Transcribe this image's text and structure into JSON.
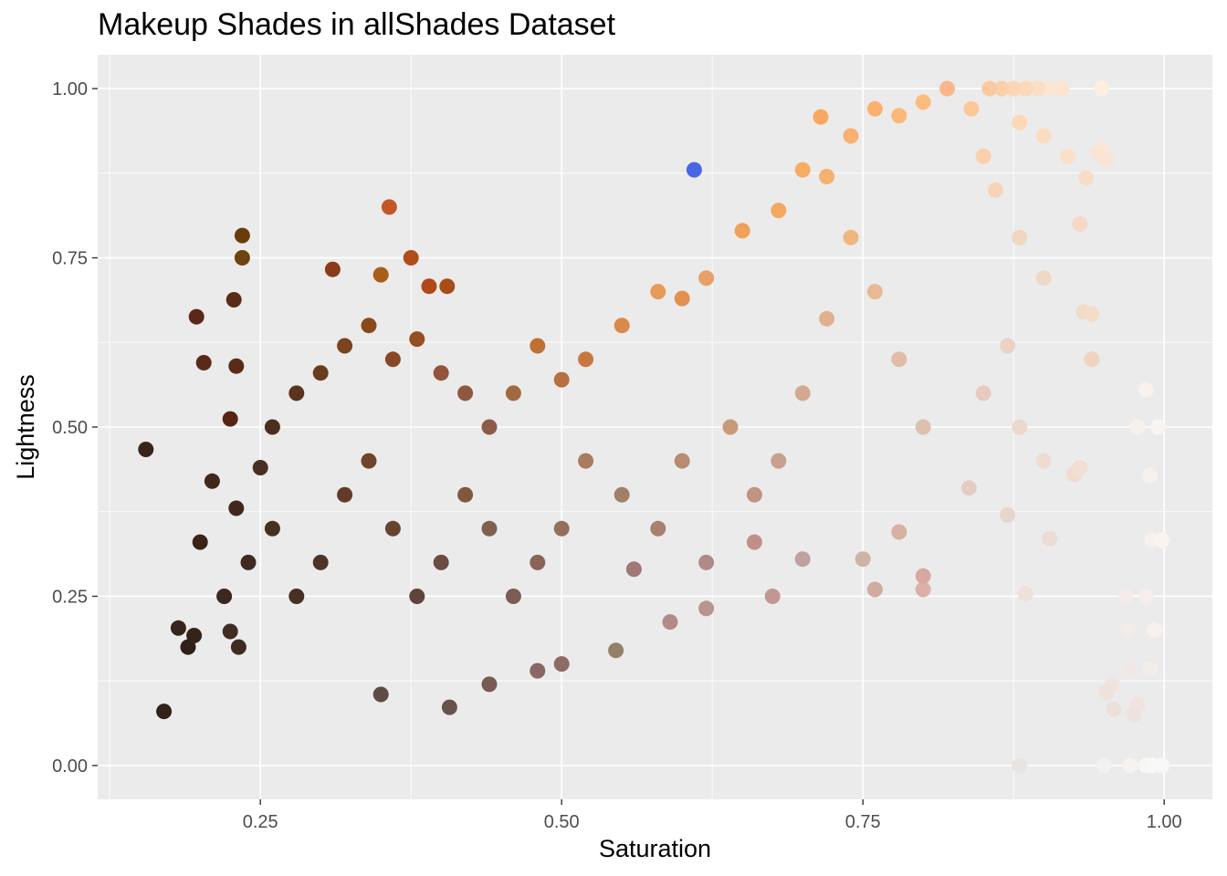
{
  "chart_data": {
    "type": "scatter",
    "title": "Makeup Shades in allShades Dataset",
    "xlabel": "Saturation",
    "ylabel": "Lightness",
    "xlim": [
      0.115,
      1.04
    ],
    "ylim": [
      -0.05,
      1.05
    ],
    "x_ticks": [
      0.25,
      0.5,
      0.75,
      1.0
    ],
    "x_tick_labels": [
      "0.25",
      "0.50",
      "0.75",
      "1.00"
    ],
    "y_ticks": [
      0.0,
      0.25,
      0.5,
      0.75,
      1.0
    ],
    "y_tick_labels": [
      "0.00",
      "0.25",
      "0.50",
      "0.75",
      "1.00"
    ],
    "grid": true,
    "panel_background": "#ebebeb",
    "grid_color": "#ffffff",
    "point_color_rule": "hsl(hue, saturation, lightness) of each shade",
    "points": [
      {
        "x": 0.155,
        "y": 0.467,
        "color": "#3a2418"
      },
      {
        "x": 0.17,
        "y": 0.08,
        "color": "#33221a"
      },
      {
        "x": 0.235,
        "y": 0.783,
        "color": "#6b3c0a"
      },
      {
        "x": 0.235,
        "y": 0.75,
        "color": "#6b4410"
      },
      {
        "x": 0.357,
        "y": 0.825,
        "color": "#c05828"
      },
      {
        "x": 0.61,
        "y": 0.88,
        "color": "#4a66e6"
      },
      {
        "x": 0.715,
        "y": 0.958,
        "color": "#f8a860"
      },
      {
        "x": 0.197,
        "y": 0.663,
        "color": "#5a2818"
      },
      {
        "x": 0.203,
        "y": 0.595,
        "color": "#5a2a18"
      },
      {
        "x": 0.228,
        "y": 0.688,
        "color": "#5a2c18"
      },
      {
        "x": 0.23,
        "y": 0.59,
        "color": "#5a2c18"
      },
      {
        "x": 0.225,
        "y": 0.512,
        "color": "#5a2414"
      },
      {
        "x": 0.35,
        "y": 0.725,
        "color": "#a85d18"
      },
      {
        "x": 0.375,
        "y": 0.75,
        "color": "#b04e18"
      },
      {
        "x": 0.31,
        "y": 0.733,
        "color": "#8a3a14"
      },
      {
        "x": 0.405,
        "y": 0.708,
        "color": "#a84c18"
      },
      {
        "x": 0.39,
        "y": 0.708,
        "color": "#b04818"
      },
      {
        "x": 0.19,
        "y": 0.175,
        "color": "#30201a"
      },
      {
        "x": 0.195,
        "y": 0.192,
        "color": "#332319"
      },
      {
        "x": 0.182,
        "y": 0.203,
        "color": "#36251c"
      },
      {
        "x": 0.232,
        "y": 0.175,
        "color": "#3d2a20"
      },
      {
        "x": 0.225,
        "y": 0.198,
        "color": "#3f2c22"
      },
      {
        "x": 0.35,
        "y": 0.105,
        "color": "#5e4b45"
      },
      {
        "x": 0.407,
        "y": 0.086,
        "color": "#67524d"
      },
      {
        "x": 0.44,
        "y": 0.12,
        "color": "#7a5a55"
      },
      {
        "x": 0.48,
        "y": 0.14,
        "color": "#8a6664"
      },
      {
        "x": 0.5,
        "y": 0.15,
        "color": "#8e6a66"
      },
      {
        "x": 0.545,
        "y": 0.17,
        "color": "#94806a"
      },
      {
        "x": 0.59,
        "y": 0.212,
        "color": "#b48a86"
      },
      {
        "x": 0.62,
        "y": 0.232,
        "color": "#b89590"
      },
      {
        "x": 0.675,
        "y": 0.25,
        "color": "#c09890"
      },
      {
        "x": 0.885,
        "y": 0.254,
        "color": "#eee0da"
      },
      {
        "x": 0.88,
        "y": 0.0,
        "color": "#e8e4e2"
      },
      {
        "x": 0.972,
        "y": 0.0,
        "color": "#f6f2f0"
      },
      {
        "x": 0.95,
        "y": 0.0,
        "color": "#f4f0ee"
      },
      {
        "x": 0.985,
        "y": 0.0,
        "color": "#f8f6f4"
      },
      {
        "x": 0.998,
        "y": 0.0,
        "color": "#faf8f6"
      },
      {
        "x": 0.99,
        "y": 0.0,
        "color": "#faf8f6"
      },
      {
        "x": 0.985,
        "y": 0.555,
        "color": "#f8f2ee"
      },
      {
        "x": 0.978,
        "y": 0.5,
        "color": "#f8f0ec"
      },
      {
        "x": 0.995,
        "y": 0.5,
        "color": "#faf4f0"
      },
      {
        "x": 0.988,
        "y": 0.428,
        "color": "#f8f0ec"
      },
      {
        "x": 0.99,
        "y": 0.333,
        "color": "#f8f0ec"
      },
      {
        "x": 0.998,
        "y": 0.333,
        "color": "#faf4f0"
      },
      {
        "x": 0.968,
        "y": 0.25,
        "color": "#f4ece8"
      },
      {
        "x": 0.985,
        "y": 0.25,
        "color": "#f6eeea"
      },
      {
        "x": 0.97,
        "y": 0.2,
        "color": "#f4ece8"
      },
      {
        "x": 0.992,
        "y": 0.2,
        "color": "#f8f0ec"
      },
      {
        "x": 0.972,
        "y": 0.143,
        "color": "#f0e8e4"
      },
      {
        "x": 0.988,
        "y": 0.143,
        "color": "#f4ece8"
      },
      {
        "x": 0.957,
        "y": 0.12,
        "color": "#f0e4de"
      },
      {
        "x": 0.952,
        "y": 0.108,
        "color": "#ede2dc"
      },
      {
        "x": 0.958,
        "y": 0.083,
        "color": "#ece0da"
      },
      {
        "x": 0.978,
        "y": 0.09,
        "color": "#f0e4e0"
      },
      {
        "x": 0.975,
        "y": 0.075,
        "color": "#eee2de"
      },
      {
        "x": 0.948,
        "y": 1.0,
        "color": "#fdeee2"
      },
      {
        "x": 0.915,
        "y": 1.0,
        "color": "#fce4cf"
      },
      {
        "x": 0.905,
        "y": 1.0,
        "color": "#fce6d2"
      },
      {
        "x": 0.895,
        "y": 1.0,
        "color": "#fbdfc5"
      },
      {
        "x": 0.885,
        "y": 1.0,
        "color": "#fbd9ba"
      },
      {
        "x": 0.875,
        "y": 1.0,
        "color": "#fcd6b4"
      },
      {
        "x": 0.865,
        "y": 1.0,
        "color": "#fbd0aa"
      },
      {
        "x": 0.855,
        "y": 1.0,
        "color": "#fbc9a0"
      },
      {
        "x": 0.82,
        "y": 1.0,
        "color": "#fdb68a"
      },
      {
        "x": 0.948,
        "y": 0.91,
        "color": "#fbe6d8"
      },
      {
        "x": 0.952,
        "y": 0.895,
        "color": "#f9e3d5"
      },
      {
        "x": 0.945,
        "y": 0.905,
        "color": "#fae4d6"
      },
      {
        "x": 0.935,
        "y": 0.868,
        "color": "#f8dcc8"
      },
      {
        "x": 0.93,
        "y": 0.8,
        "color": "#f6d8c6"
      },
      {
        "x": 0.933,
        "y": 0.67,
        "color": "#f0dcc6"
      },
      {
        "x": 0.94,
        "y": 0.667,
        "color": "#f4dcc8"
      },
      {
        "x": 0.94,
        "y": 0.6,
        "color": "#f0d4c0"
      },
      {
        "x": 0.925,
        "y": 0.43,
        "color": "#f0dcd0"
      },
      {
        "x": 0.93,
        "y": 0.44,
        "color": "#f2ded2"
      },
      {
        "x": 0.905,
        "y": 0.335,
        "color": "#ecdcd4"
      },
      {
        "x": 0.87,
        "y": 0.37,
        "color": "#e8d6ce"
      },
      {
        "x": 0.838,
        "y": 0.41,
        "color": "#e4ccc4"
      },
      {
        "x": 0.78,
        "y": 0.345,
        "color": "#d8b0a4"
      },
      {
        "x": 0.75,
        "y": 0.305,
        "color": "#ccb4a6"
      },
      {
        "x": 0.7,
        "y": 0.305,
        "color": "#c0a0a0"
      },
      {
        "x": 0.76,
        "y": 0.26,
        "color": "#d0aca0"
      },
      {
        "x": 0.8,
        "y": 0.26,
        "color": "#dcb0a8"
      },
      {
        "x": 0.8,
        "y": 0.28,
        "color": "#d8a8a0"
      },
      {
        "x": 0.62,
        "y": 0.3,
        "color": "#b08a86"
      },
      {
        "x": 0.66,
        "y": 0.33,
        "color": "#c09088"
      },
      {
        "x": 0.56,
        "y": 0.29,
        "color": "#a07876"
      },
      {
        "x": 0.25,
        "y": 0.44,
        "color": "#4a2e22"
      },
      {
        "x": 0.26,
        "y": 0.5,
        "color": "#4c2e1e"
      },
      {
        "x": 0.28,
        "y": 0.55,
        "color": "#5a341e"
      },
      {
        "x": 0.3,
        "y": 0.58,
        "color": "#683c1c"
      },
      {
        "x": 0.32,
        "y": 0.62,
        "color": "#7a441e"
      },
      {
        "x": 0.34,
        "y": 0.65,
        "color": "#8a4a1c"
      },
      {
        "x": 0.36,
        "y": 0.6,
        "color": "#884826"
      },
      {
        "x": 0.38,
        "y": 0.63,
        "color": "#94501e"
      },
      {
        "x": 0.4,
        "y": 0.58,
        "color": "#92543a"
      },
      {
        "x": 0.42,
        "y": 0.55,
        "color": "#8e5840"
      },
      {
        "x": 0.44,
        "y": 0.5,
        "color": "#8c5c48"
      },
      {
        "x": 0.46,
        "y": 0.55,
        "color": "#a26840"
      },
      {
        "x": 0.48,
        "y": 0.62,
        "color": "#c07030"
      },
      {
        "x": 0.5,
        "y": 0.57,
        "color": "#b87040"
      },
      {
        "x": 0.52,
        "y": 0.6,
        "color": "#c8783e"
      },
      {
        "x": 0.55,
        "y": 0.65,
        "color": "#d88a4c"
      },
      {
        "x": 0.58,
        "y": 0.7,
        "color": "#e89a58"
      },
      {
        "x": 0.6,
        "y": 0.69,
        "color": "#e49050"
      },
      {
        "x": 0.62,
        "y": 0.72,
        "color": "#e8a068"
      },
      {
        "x": 0.65,
        "y": 0.79,
        "color": "#f0a058"
      },
      {
        "x": 0.68,
        "y": 0.82,
        "color": "#f4a860"
      },
      {
        "x": 0.7,
        "y": 0.88,
        "color": "#f8ac60"
      },
      {
        "x": 0.72,
        "y": 0.87,
        "color": "#f6b070"
      },
      {
        "x": 0.74,
        "y": 0.93,
        "color": "#fab070"
      },
      {
        "x": 0.76,
        "y": 0.97,
        "color": "#fcb070"
      },
      {
        "x": 0.78,
        "y": 0.96,
        "color": "#fcb878"
      },
      {
        "x": 0.8,
        "y": 0.98,
        "color": "#fcbc80"
      },
      {
        "x": 0.84,
        "y": 0.97,
        "color": "#fcc898"
      },
      {
        "x": 0.88,
        "y": 0.95,
        "color": "#fcd8b8"
      },
      {
        "x": 0.9,
        "y": 0.93,
        "color": "#fcdcc0"
      },
      {
        "x": 0.92,
        "y": 0.9,
        "color": "#fbe0c8"
      },
      {
        "x": 0.85,
        "y": 0.9,
        "color": "#f8d0b0"
      },
      {
        "x": 0.86,
        "y": 0.85,
        "color": "#f6d4b8"
      },
      {
        "x": 0.88,
        "y": 0.78,
        "color": "#f2d6c0"
      },
      {
        "x": 0.9,
        "y": 0.72,
        "color": "#f0d8c6"
      },
      {
        "x": 0.87,
        "y": 0.62,
        "color": "#ecd2c4"
      },
      {
        "x": 0.85,
        "y": 0.55,
        "color": "#e8cabe"
      },
      {
        "x": 0.88,
        "y": 0.5,
        "color": "#ecd8cc"
      },
      {
        "x": 0.9,
        "y": 0.45,
        "color": "#eedcd2"
      },
      {
        "x": 0.8,
        "y": 0.5,
        "color": "#dcc0b0"
      },
      {
        "x": 0.78,
        "y": 0.6,
        "color": "#e2bca6"
      },
      {
        "x": 0.76,
        "y": 0.7,
        "color": "#eab894"
      },
      {
        "x": 0.74,
        "y": 0.78,
        "color": "#f0b680"
      },
      {
        "x": 0.72,
        "y": 0.66,
        "color": "#e0b090"
      },
      {
        "x": 0.7,
        "y": 0.55,
        "color": "#d4a890"
      },
      {
        "x": 0.68,
        "y": 0.45,
        "color": "#c8a090"
      },
      {
        "x": 0.66,
        "y": 0.4,
        "color": "#c09480"
      },
      {
        "x": 0.64,
        "y": 0.5,
        "color": "#c89a78"
      },
      {
        "x": 0.6,
        "y": 0.45,
        "color": "#b88c74"
      },
      {
        "x": 0.58,
        "y": 0.35,
        "color": "#a88070"
      },
      {
        "x": 0.55,
        "y": 0.4,
        "color": "#a08068"
      },
      {
        "x": 0.52,
        "y": 0.45,
        "color": "#a87c60"
      },
      {
        "x": 0.5,
        "y": 0.35,
        "color": "#94705c"
      },
      {
        "x": 0.48,
        "y": 0.3,
        "color": "#8a6458"
      },
      {
        "x": 0.46,
        "y": 0.25,
        "color": "#7c5c54"
      },
      {
        "x": 0.44,
        "y": 0.35,
        "color": "#80604e"
      },
      {
        "x": 0.42,
        "y": 0.4,
        "color": "#80583e"
      },
      {
        "x": 0.4,
        "y": 0.3,
        "color": "#6c4c40"
      },
      {
        "x": 0.38,
        "y": 0.25,
        "color": "#5e443a"
      },
      {
        "x": 0.36,
        "y": 0.35,
        "color": "#664430"
      },
      {
        "x": 0.34,
        "y": 0.45,
        "color": "#70442a"
      },
      {
        "x": 0.32,
        "y": 0.4,
        "color": "#623c28"
      },
      {
        "x": 0.3,
        "y": 0.3,
        "color": "#4e3426"
      },
      {
        "x": 0.28,
        "y": 0.25,
        "color": "#483024"
      },
      {
        "x": 0.26,
        "y": 0.35,
        "color": "#46301e"
      },
      {
        "x": 0.24,
        "y": 0.3,
        "color": "#3e2a20"
      },
      {
        "x": 0.22,
        "y": 0.25,
        "color": "#3a281e"
      },
      {
        "x": 0.2,
        "y": 0.33,
        "color": "#3a2418"
      },
      {
        "x": 0.21,
        "y": 0.42,
        "color": "#40281a"
      },
      {
        "x": 0.23,
        "y": 0.38,
        "color": "#42281c"
      }
    ]
  }
}
